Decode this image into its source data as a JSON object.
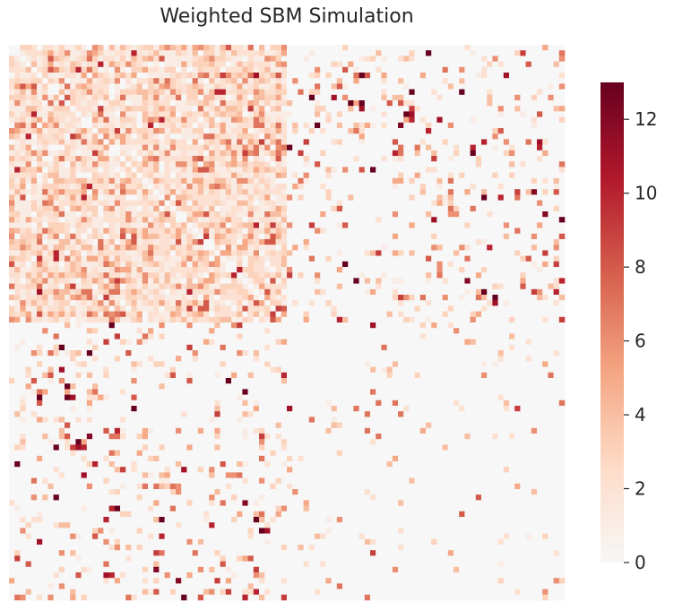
{
  "chart_data": {
    "type": "heatmap",
    "title": "Weighted SBM Simulation",
    "xlabel": "",
    "ylabel": "",
    "n_nodes": 100,
    "blocks": [
      {
        "start": 0,
        "end": 50
      },
      {
        "start": 50,
        "end": 100
      }
    ],
    "block_density": [
      [
        0.92,
        0.16
      ],
      [
        0.16,
        0.04
      ]
    ],
    "block_mean_weight": [
      [
        2.5,
        4.8
      ],
      [
        4.8,
        3.5
      ]
    ],
    "cmap": "RdBu_r",
    "vmin": 0,
    "vmax": 13,
    "colorbar": {
      "ticks": [
        0,
        2,
        4,
        6,
        8,
        10,
        12
      ],
      "tick_labels": [
        "0",
        "2",
        "4",
        "6",
        "8",
        "10",
        "12"
      ]
    }
  }
}
